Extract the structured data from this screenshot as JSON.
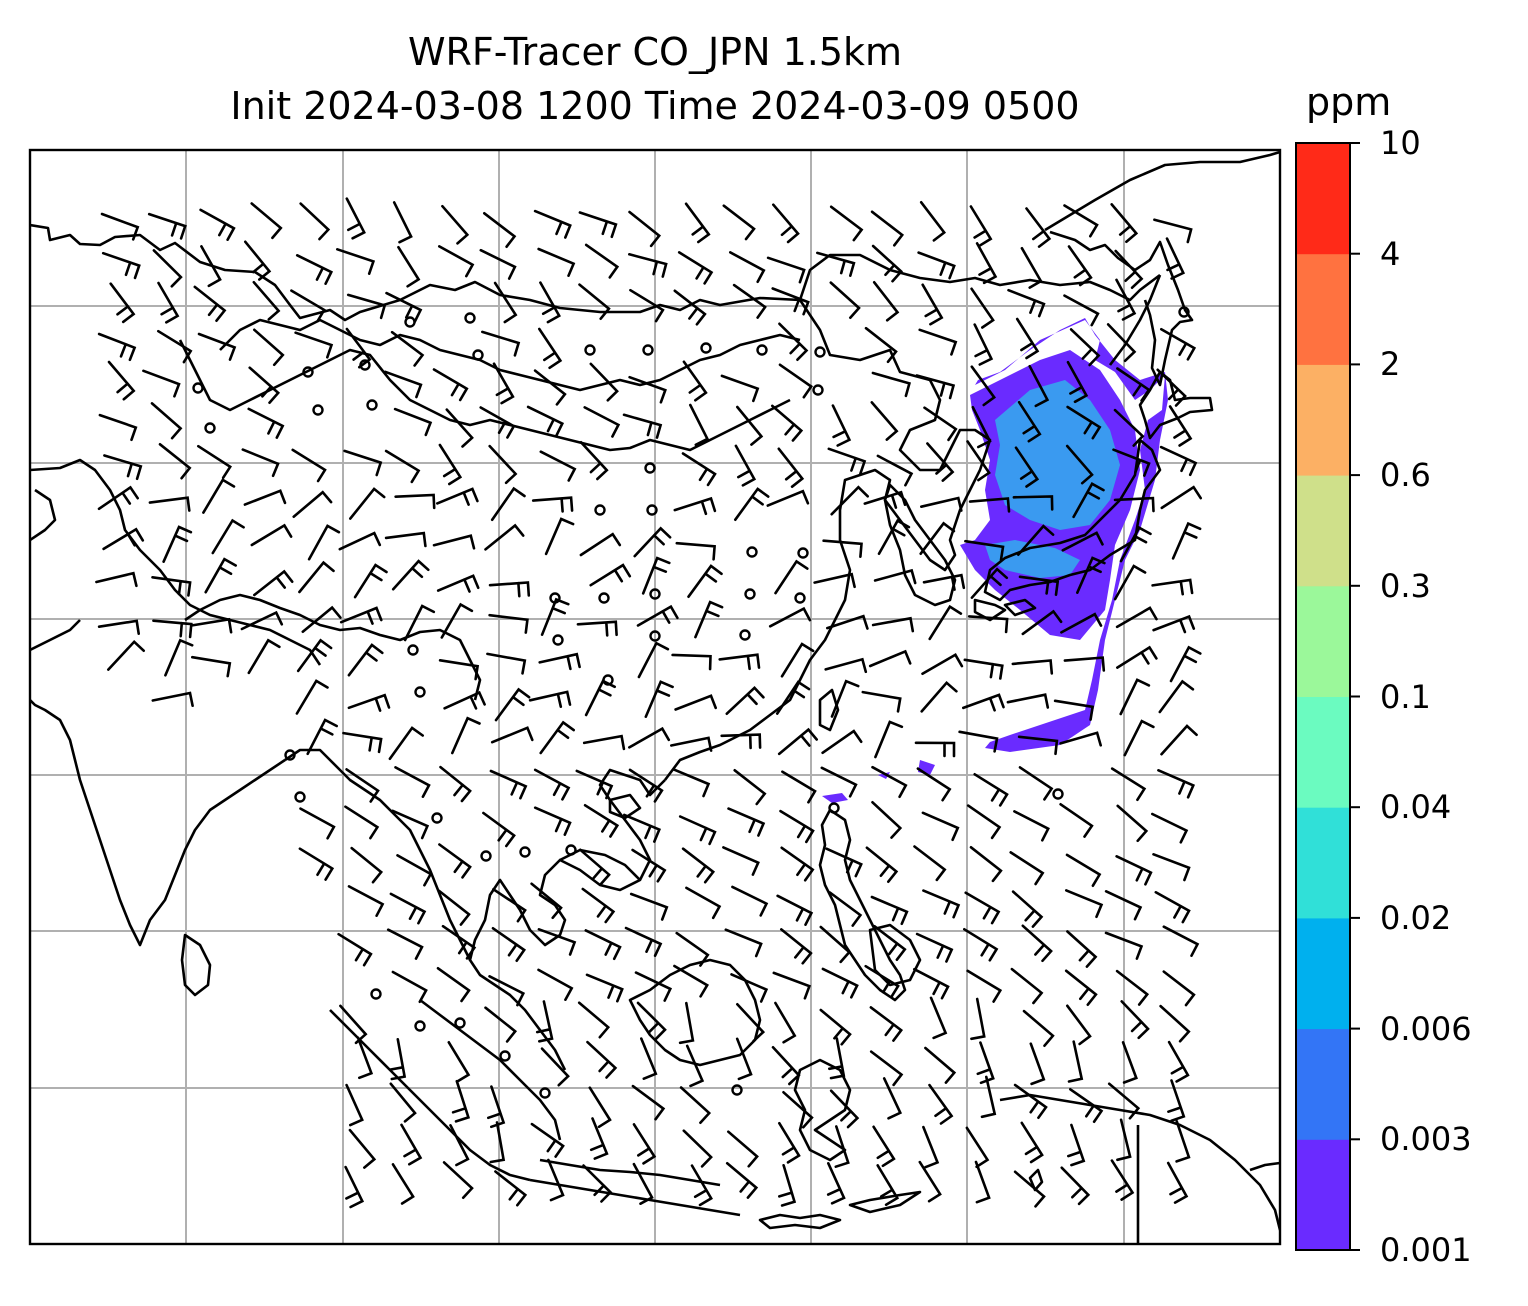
{
  "title": {
    "line1": "WRF-Tracer CO_JPN 1.5km",
    "line2": "Init 2024-03-08 1200 Time 2024-03-09 0500"
  },
  "colorbar": {
    "units": "ppm",
    "levels": [
      "0.001",
      "0.003",
      "0.006",
      "0.02",
      "0.04",
      "0.1",
      "0.3",
      "0.6",
      "2",
      "4",
      "10"
    ],
    "colors": [
      "#6a2bff",
      "#3375f6",
      "#00b0ee",
      "#30e0d8",
      "#6bfbc0",
      "#9bf89a",
      "#cfe08a",
      "#fcb064",
      "#ff7240",
      "#ff2a18"
    ]
  },
  "map": {
    "background": "#ffffff",
    "coastline_color": "#000000",
    "grid_color": "#b0b0b0",
    "plume_color": "#6a2bff",
    "plume_inner_color": "#3a9af0",
    "barb_color": "#000000"
  }
}
